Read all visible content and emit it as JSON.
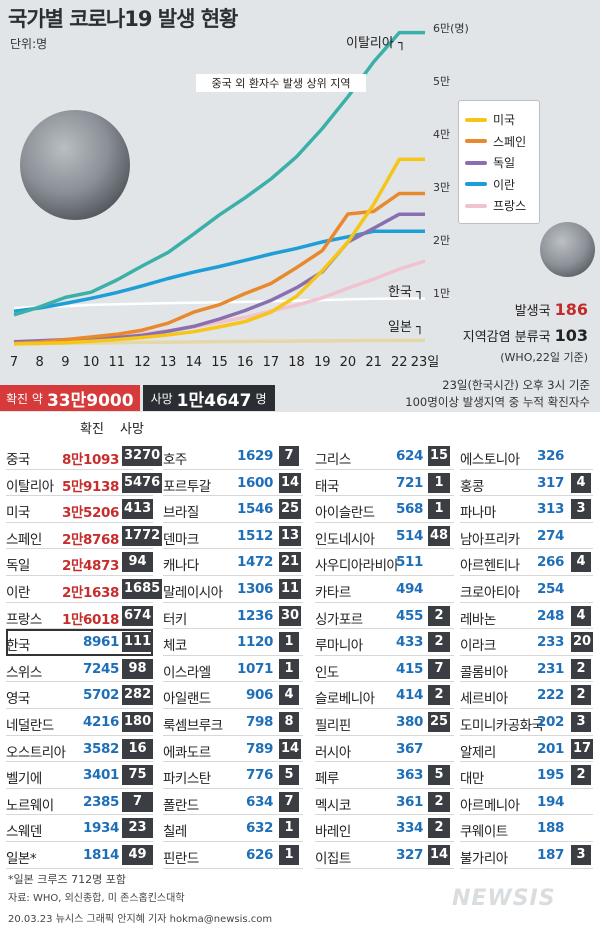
{
  "header": {
    "title": "국가별 코로나19 발생 현황",
    "unit": "단위:명"
  },
  "chart_data": {
    "type": "line",
    "title": "국가별 코로나19 발생 현황",
    "annotation": "중국 외 환자수 발생 상위 지역",
    "x_suffix": "일",
    "x": [
      7,
      8,
      9,
      10,
      11,
      12,
      13,
      14,
      15,
      16,
      17,
      18,
      19,
      20,
      21,
      22,
      23
    ],
    "ylim": [
      0,
      60000
    ],
    "y_ticks": [
      {
        "v": 10000,
        "label": "1만"
      },
      {
        "v": 20000,
        "label": "2만"
      },
      {
        "v": 30000,
        "label": "3만"
      },
      {
        "v": 40000,
        "label": "4만"
      },
      {
        "v": 50000,
        "label": "5만"
      },
      {
        "v": 60000,
        "label": "6만(명)"
      }
    ],
    "grid": false,
    "legend_position": "right",
    "series": [
      {
        "name": "이탈리아",
        "color": "#3bb0a9",
        "label_on_line": true,
        "values": [
          5883,
          7375,
          9172,
          10149,
          12462,
          15113,
          17660,
          21157,
          24747,
          27980,
          31506,
          35713,
          41035,
          47021,
          53578,
          59138,
          59138
        ]
      },
      {
        "name": "미국",
        "color": "#f5c518",
        "values": [
          400,
          500,
          600,
          900,
          1200,
          1600,
          2100,
          2700,
          3600,
          4600,
          6400,
          9400,
          14200,
          19600,
          26700,
          35206,
          35206
        ]
      },
      {
        "name": "스페인",
        "color": "#e8892e",
        "values": [
          500,
          700,
          1200,
          1700,
          2200,
          3000,
          4300,
          6400,
          7800,
          9900,
          11800,
          14800,
          18000,
          24900,
          25400,
          28768,
          28768
        ]
      },
      {
        "name": "독일",
        "color": "#8a6fb0",
        "values": [
          800,
          1000,
          1200,
          1300,
          1600,
          2000,
          2800,
          3700,
          5100,
          6700,
          8600,
          11000,
          14000,
          19600,
          22200,
          24873,
          24873
        ]
      },
      {
        "name": "이란",
        "color": "#1e9ed6",
        "values": [
          6566,
          7161,
          8042,
          9000,
          10075,
          11364,
          12729,
          13938,
          14991,
          16169,
          17361,
          18407,
          19644,
          20610,
          21638,
          21638,
          21638
        ]
      },
      {
        "name": "프랑스",
        "color": "#f1c3cf",
        "values": [
          700,
          900,
          1200,
          1400,
          1800,
          2300,
          2900,
          3600,
          4500,
          5400,
          6600,
          7700,
          9100,
          10900,
          12600,
          14500,
          16018
        ]
      },
      {
        "name": "한국",
        "color": "#ffffff",
        "label_on_line": true,
        "values": [
          7134,
          7382,
          7513,
          7755,
          7869,
          7979,
          8086,
          8162,
          8236,
          8320,
          8413,
          8565,
          8652,
          8799,
          8897,
          8961,
          8961
        ]
      },
      {
        "name": "일본",
        "color": "#e4d7a8",
        "label_on_line": true,
        "values": [
          400,
          460,
          510,
          560,
          620,
          690,
          720,
          780,
          830,
          870,
          900,
          930,
          960,
          1000,
          1040,
          1054,
          1054
        ]
      }
    ]
  },
  "legend": [
    "미국",
    "스페인",
    "독일",
    "이란",
    "프랑스"
  ],
  "stats": {
    "countries_label": "발생국",
    "countries_value": "186",
    "classified_label": "지역감염 분류국",
    "classified_value": "103",
    "note": "(WHO,22일 기준)"
  },
  "totals": {
    "confirmed_prefix": "확진 약",
    "confirmed_value": "33만9000",
    "deaths_label": "사망",
    "deaths_value": "1만4647",
    "deaths_unit": "명"
  },
  "basis": {
    "line1": "23일(한국시간) 오후 3시 기준",
    "line2": "100명이상 발생지역 중 누적 확진자수"
  },
  "table": {
    "head_confirmed": "확진",
    "head_deaths": "사망",
    "columns": [
      [
        {
          "name": "중국",
          "confirmed": "8만1093",
          "deaths": "3270",
          "red": true
        },
        {
          "name": "이탈리아",
          "confirmed": "5만9138",
          "deaths": "5476",
          "red": true
        },
        {
          "name": "미국",
          "confirmed": "3만5206",
          "deaths": "413",
          "red": true
        },
        {
          "name": "스페인",
          "confirmed": "2만8768",
          "deaths": "1772",
          "red": true
        },
        {
          "name": "독일",
          "confirmed": "2만4873",
          "deaths": "94",
          "red": true
        },
        {
          "name": "이란",
          "confirmed": "2만1638",
          "deaths": "1685",
          "red": true
        },
        {
          "name": "프랑스",
          "confirmed": "1만6018",
          "deaths": "674",
          "red": true
        },
        {
          "name": "한국",
          "confirmed": "8961",
          "deaths": "111",
          "highlight": true
        },
        {
          "name": "스위스",
          "confirmed": "7245",
          "deaths": "98"
        },
        {
          "name": "영국",
          "confirmed": "5702",
          "deaths": "282"
        },
        {
          "name": "네덜란드",
          "confirmed": "4216",
          "deaths": "180"
        },
        {
          "name": "오스트리아",
          "confirmed": "3582",
          "deaths": "16"
        },
        {
          "name": "벨기에",
          "confirmed": "3401",
          "deaths": "75"
        },
        {
          "name": "노르웨이",
          "confirmed": "2385",
          "deaths": "7"
        },
        {
          "name": "스웨덴",
          "confirmed": "1934",
          "deaths": "23"
        },
        {
          "name": "일본*",
          "confirmed": "1814",
          "deaths": "49"
        }
      ],
      [
        {
          "name": "호주",
          "confirmed": "1629",
          "deaths": "7"
        },
        {
          "name": "포르투갈",
          "confirmed": "1600",
          "deaths": "14"
        },
        {
          "name": "브라질",
          "confirmed": "1546",
          "deaths": "25"
        },
        {
          "name": "덴마크",
          "confirmed": "1512",
          "deaths": "13"
        },
        {
          "name": "캐나다",
          "confirmed": "1472",
          "deaths": "21"
        },
        {
          "name": "말레이시아",
          "confirmed": "1306",
          "deaths": "11"
        },
        {
          "name": "터키",
          "confirmed": "1236",
          "deaths": "30"
        },
        {
          "name": "체코",
          "confirmed": "1120",
          "deaths": "1"
        },
        {
          "name": "이스라엘",
          "confirmed": "1071",
          "deaths": "1"
        },
        {
          "name": "아일랜드",
          "confirmed": "906",
          "deaths": "4"
        },
        {
          "name": "룩셈브루크",
          "confirmed": "798",
          "deaths": "8"
        },
        {
          "name": "에콰도르",
          "confirmed": "789",
          "deaths": "14"
        },
        {
          "name": "파키스탄",
          "confirmed": "776",
          "deaths": "5"
        },
        {
          "name": "폴란드",
          "confirmed": "634",
          "deaths": "7"
        },
        {
          "name": "칠레",
          "confirmed": "632",
          "deaths": "1"
        },
        {
          "name": "핀란드",
          "confirmed": "626",
          "deaths": "1"
        }
      ],
      [
        {
          "name": "그리스",
          "confirmed": "624",
          "deaths": "15"
        },
        {
          "name": "태국",
          "confirmed": "721",
          "deaths": "1"
        },
        {
          "name": "아이슬란드",
          "confirmed": "568",
          "deaths": "1"
        },
        {
          "name": "인도네시아",
          "confirmed": "514",
          "deaths": "48"
        },
        {
          "name": "사우디아라비아",
          "confirmed": "511",
          "deaths": ""
        },
        {
          "name": "카타르",
          "confirmed": "494",
          "deaths": ""
        },
        {
          "name": "싱가포르",
          "confirmed": "455",
          "deaths": "2"
        },
        {
          "name": "루마니아",
          "confirmed": "433",
          "deaths": "2"
        },
        {
          "name": "인도",
          "confirmed": "415",
          "deaths": "7"
        },
        {
          "name": "슬로베니아",
          "confirmed": "414",
          "deaths": "2"
        },
        {
          "name": "필리핀",
          "confirmed": "380",
          "deaths": "25"
        },
        {
          "name": "러시아",
          "confirmed": "367",
          "deaths": ""
        },
        {
          "name": "페루",
          "confirmed": "363",
          "deaths": "5"
        },
        {
          "name": "멕시코",
          "confirmed": "361",
          "deaths": "2"
        },
        {
          "name": "바레인",
          "confirmed": "334",
          "deaths": "2"
        },
        {
          "name": "이집트",
          "confirmed": "327",
          "deaths": "14"
        }
      ],
      [
        {
          "name": "에스토니아",
          "confirmed": "326",
          "deaths": ""
        },
        {
          "name": "홍콩",
          "confirmed": "317",
          "deaths": "4"
        },
        {
          "name": "파나마",
          "confirmed": "313",
          "deaths": "3"
        },
        {
          "name": "남아프리카",
          "confirmed": "274",
          "deaths": ""
        },
        {
          "name": "아르헨티나",
          "confirmed": "266",
          "deaths": "4"
        },
        {
          "name": "크로아티아",
          "confirmed": "254",
          "deaths": ""
        },
        {
          "name": "레바논",
          "confirmed": "248",
          "deaths": "4"
        },
        {
          "name": "이라크",
          "confirmed": "233",
          "deaths": "20"
        },
        {
          "name": "콜롬비아",
          "confirmed": "231",
          "deaths": "2"
        },
        {
          "name": "세르비아",
          "confirmed": "222",
          "deaths": "2"
        },
        {
          "name": "도미니카공화국",
          "confirmed": "202",
          "deaths": "3"
        },
        {
          "name": "알제리",
          "confirmed": "201",
          "deaths": "17"
        },
        {
          "name": "대만",
          "confirmed": "195",
          "deaths": "2"
        },
        {
          "name": "아르메니아",
          "confirmed": "194",
          "deaths": ""
        },
        {
          "name": "쿠웨이트",
          "confirmed": "188",
          "deaths": ""
        },
        {
          "name": "불가리아",
          "confirmed": "187",
          "deaths": "3"
        }
      ]
    ]
  },
  "footer": {
    "note": "*일본 크루즈 712명 포함",
    "source": "자료: WHO, 외신종합, 미 존스홉킨스대학",
    "credit": "20.03.23 뉴시스 그래픽 안지혜 기자 hokma@newsis.com",
    "logo": "NEWSIS"
  }
}
